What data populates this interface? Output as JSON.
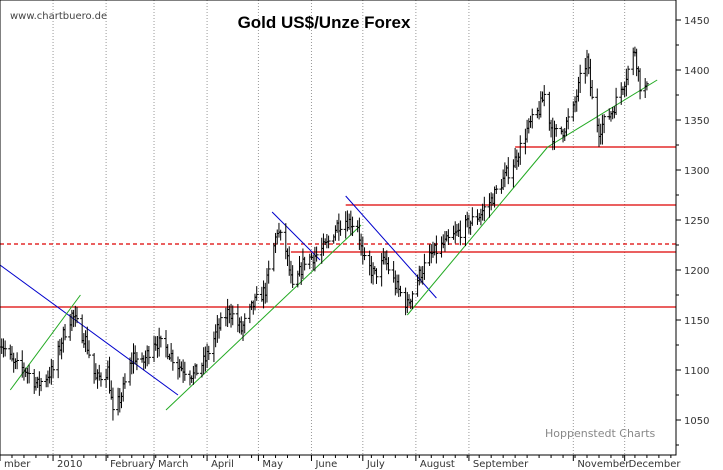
{
  "watermark": "www.chartbuero.de",
  "credit": "Hoppenstedt Charts",
  "chart_data": {
    "type": "ohlc",
    "title": "Gold US$/Unze Forex",
    "ylim": [
      1015,
      1470
    ],
    "yticks": [
      1050,
      1100,
      1150,
      1200,
      1250,
      1300,
      1350,
      1400,
      1450
    ],
    "y_axis_side": "right",
    "grid": "vertical dotted at month starts",
    "x_start": "2009-12-01",
    "x_end": "2010-12-31",
    "months": [
      {
        "label": "mber",
        "start": "2009-12-01"
      },
      {
        "label": "2010",
        "start": "2010-01-01"
      },
      {
        "label": "February",
        "start": "2010-02-01"
      },
      {
        "label": "March",
        "start": "2010-03-01"
      },
      {
        "label": "April",
        "start": "2010-04-01"
      },
      {
        "label": "May",
        "start": "2010-05-01"
      },
      {
        "label": "June",
        "start": "2010-06-01"
      },
      {
        "label": "July",
        "start": "2010-07-01"
      },
      {
        "label": "August",
        "start": "2010-08-01"
      },
      {
        "label": "September",
        "start": "2010-09-01"
      },
      {
        "label": "November",
        "start": "2010-11-01"
      },
      {
        "label": "December",
        "start": "2010-12-01"
      }
    ],
    "anchors": [
      [
        "2009-12-01",
        1130
      ],
      [
        "2009-12-09",
        1105
      ],
      [
        "2009-12-16",
        1100
      ],
      [
        "2009-12-23",
        1085
      ],
      [
        "2010-01-01",
        1100
      ],
      [
        "2010-01-07",
        1135
      ],
      [
        "2010-01-12",
        1155
      ],
      [
        "2010-01-20",
        1130
      ],
      [
        "2010-01-26",
        1090
      ],
      [
        "2010-02-02",
        1100
      ],
      [
        "2010-02-05",
        1055
      ],
      [
        "2010-02-10",
        1075
      ],
      [
        "2010-02-17",
        1115
      ],
      [
        "2010-02-22",
        1105
      ],
      [
        "2010-03-01",
        1130
      ],
      [
        "2010-03-09",
        1120
      ],
      [
        "2010-03-15",
        1105
      ],
      [
        "2010-03-24",
        1095
      ],
      [
        "2010-03-31",
        1110
      ],
      [
        "2010-04-07",
        1140
      ],
      [
        "2010-04-14",
        1160
      ],
      [
        "2010-04-21",
        1140
      ],
      [
        "2010-04-28",
        1165
      ],
      [
        "2010-05-05",
        1180
      ],
      [
        "2010-05-12",
        1240
      ],
      [
        "2010-05-17",
        1220
      ],
      [
        "2010-05-21",
        1180
      ],
      [
        "2010-05-28",
        1210
      ],
      [
        "2010-06-04",
        1215
      ],
      [
        "2010-06-10",
        1225
      ],
      [
        "2010-06-16",
        1245
      ],
      [
        "2010-06-21",
        1250
      ],
      [
        "2010-06-28",
        1245
      ],
      [
        "2010-07-01",
        1210
      ],
      [
        "2010-07-08",
        1195
      ],
      [
        "2010-07-14",
        1210
      ],
      [
        "2010-07-20",
        1185
      ],
      [
        "2010-07-27",
        1165
      ],
      [
        "2010-08-03",
        1195
      ],
      [
        "2010-08-10",
        1215
      ],
      [
        "2010-08-17",
        1225
      ],
      [
        "2010-08-24",
        1235
      ],
      [
        "2010-08-31",
        1245
      ],
      [
        "2010-09-07",
        1255
      ],
      [
        "2010-09-14",
        1270
      ],
      [
        "2010-09-21",
        1290
      ],
      [
        "2010-09-28",
        1310
      ],
      [
        "2010-10-05",
        1340
      ],
      [
        "2010-10-12",
        1360
      ],
      [
        "2010-10-15",
        1375
      ],
      [
        "2010-10-20",
        1335
      ],
      [
        "2010-10-26",
        1340
      ],
      [
        "2010-11-01",
        1360
      ],
      [
        "2010-11-05",
        1390
      ],
      [
        "2010-11-09",
        1410
      ],
      [
        "2010-11-12",
        1370
      ],
      [
        "2010-11-16",
        1340
      ],
      [
        "2010-11-24",
        1360
      ],
      [
        "2010-12-01",
        1390
      ],
      [
        "2010-12-07",
        1420
      ],
      [
        "2010-12-10",
        1385
      ],
      [
        "2010-12-14",
        1380
      ]
    ],
    "resistance_lines": [
      {
        "y": 1163,
        "from": "2009-12-01",
        "to": "2010-12-31",
        "color": "#dd0000",
        "style": "solid"
      },
      {
        "y": 1218,
        "from": "2010-05-20",
        "to": "2010-12-31",
        "color": "#dd0000",
        "style": "solid"
      },
      {
        "y": 1226,
        "from": "2009-12-01",
        "to": "2010-12-31",
        "color": "#dd0000",
        "style": "dashed"
      },
      {
        "y": 1265,
        "from": "2010-06-21",
        "to": "2010-12-31",
        "color": "#dd0000",
        "style": "solid"
      },
      {
        "y": 1323,
        "from": "2010-09-28",
        "to": "2010-12-31",
        "color": "#dd0000",
        "style": "solid"
      }
    ],
    "trend_lines": [
      {
        "from": [
          "2009-12-01",
          1205
        ],
        "to": [
          "2010-03-15",
          1075
        ],
        "color": "#0000cc"
      },
      {
        "from": [
          "2010-05-09",
          1258
        ],
        "to": [
          "2010-06-06",
          1210
        ],
        "color": "#0000cc"
      },
      {
        "from": [
          "2010-06-21",
          1274
        ],
        "to": [
          "2010-08-13",
          1172
        ],
        "color": "#0000cc"
      },
      {
        "from": [
          "2009-12-07",
          1080
        ],
        "to": [
          "2010-01-17",
          1175
        ],
        "color": "#22aa22"
      },
      {
        "from": [
          "2010-03-08",
          1060
        ],
        "to": [
          "2010-06-30",
          1245
        ],
        "color": "#22aa22"
      },
      {
        "from": [
          "2010-07-27",
          1155
        ],
        "to": [
          "2010-10-17",
          1323
        ],
        "color": "#22aa22"
      },
      {
        "from": [
          "2010-10-17",
          1323
        ],
        "to": [
          "2010-12-20",
          1390
        ],
        "color": "#22aa22"
      }
    ]
  }
}
